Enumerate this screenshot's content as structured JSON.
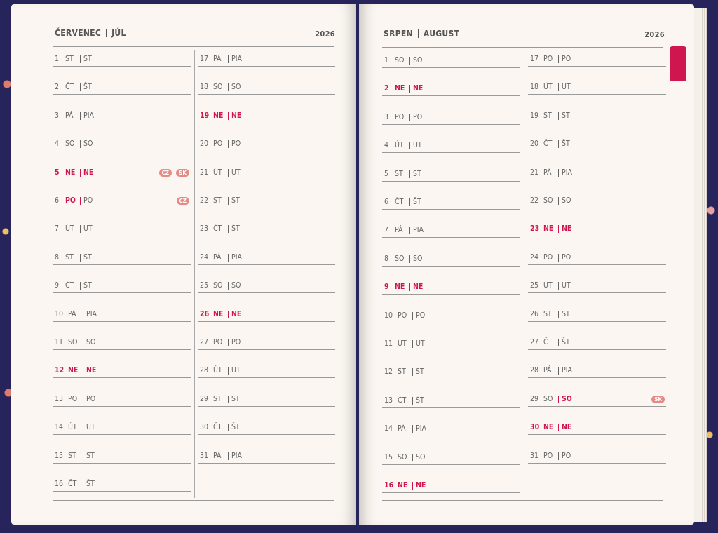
{
  "pages": [
    {
      "month_cz": "ČERVENEC",
      "month_sk": "JÚL",
      "year": "2026",
      "days": [
        {
          "n": "1",
          "cz": "ST",
          "sk": "ST"
        },
        {
          "n": "2",
          "cz": "ČT",
          "sk": "ŠT"
        },
        {
          "n": "3",
          "cz": "PÁ",
          "sk": "PIA"
        },
        {
          "n": "4",
          "cz": "SO",
          "sk": "SO"
        },
        {
          "n": "5",
          "cz": "NE",
          "sk": "NE",
          "cz_red": true,
          "sk_red": true,
          "badges": [
            "CZ",
            "SK"
          ]
        },
        {
          "n": "6",
          "cz": "PO",
          "sk": "PO",
          "cz_red": true,
          "badges": [
            "CZ"
          ]
        },
        {
          "n": "7",
          "cz": "ÚT",
          "sk": "UT"
        },
        {
          "n": "8",
          "cz": "ST",
          "sk": "ST"
        },
        {
          "n": "9",
          "cz": "ČT",
          "sk": "ŠT"
        },
        {
          "n": "10",
          "cz": "PÁ",
          "sk": "PIA"
        },
        {
          "n": "11",
          "cz": "SO",
          "sk": "SO"
        },
        {
          "n": "12",
          "cz": "NE",
          "sk": "NE",
          "cz_red": true,
          "sk_red": true
        },
        {
          "n": "13",
          "cz": "PO",
          "sk": "PO"
        },
        {
          "n": "14",
          "cz": "ÚT",
          "sk": "UT"
        },
        {
          "n": "15",
          "cz": "ST",
          "sk": "ST"
        },
        {
          "n": "16",
          "cz": "ČT",
          "sk": "ŠT"
        },
        {
          "n": "17",
          "cz": "PÁ",
          "sk": "PIA"
        },
        {
          "n": "18",
          "cz": "SO",
          "sk": "SO"
        },
        {
          "n": "19",
          "cz": "NE",
          "sk": "NE",
          "cz_red": true,
          "sk_red": true
        },
        {
          "n": "20",
          "cz": "PO",
          "sk": "PO"
        },
        {
          "n": "21",
          "cz": "ÚT",
          "sk": "UT"
        },
        {
          "n": "22",
          "cz": "ST",
          "sk": "ST"
        },
        {
          "n": "23",
          "cz": "ČT",
          "sk": "ŠT"
        },
        {
          "n": "24",
          "cz": "PÁ",
          "sk": "PIA"
        },
        {
          "n": "25",
          "cz": "SO",
          "sk": "SO"
        },
        {
          "n": "26",
          "cz": "NE",
          "sk": "NE",
          "cz_red": true,
          "sk_red": true
        },
        {
          "n": "27",
          "cz": "PO",
          "sk": "PO"
        },
        {
          "n": "28",
          "cz": "ÚT",
          "sk": "UT"
        },
        {
          "n": "29",
          "cz": "ST",
          "sk": "ST"
        },
        {
          "n": "30",
          "cz": "ČT",
          "sk": "ŠT"
        },
        {
          "n": "31",
          "cz": "PÁ",
          "sk": "PIA"
        }
      ]
    },
    {
      "month_cz": "SRPEN",
      "month_sk": "AUGUST",
      "year": "2026",
      "days": [
        {
          "n": "1",
          "cz": "SO",
          "sk": "SO"
        },
        {
          "n": "2",
          "cz": "NE",
          "sk": "NE",
          "cz_red": true,
          "sk_red": true
        },
        {
          "n": "3",
          "cz": "PO",
          "sk": "PO"
        },
        {
          "n": "4",
          "cz": "ÚT",
          "sk": "UT"
        },
        {
          "n": "5",
          "cz": "ST",
          "sk": "ST"
        },
        {
          "n": "6",
          "cz": "ČT",
          "sk": "ŠT"
        },
        {
          "n": "7",
          "cz": "PÁ",
          "sk": "PIA"
        },
        {
          "n": "8",
          "cz": "SO",
          "sk": "SO"
        },
        {
          "n": "9",
          "cz": "NE",
          "sk": "NE",
          "cz_red": true,
          "sk_red": true
        },
        {
          "n": "10",
          "cz": "PO",
          "sk": "PO"
        },
        {
          "n": "11",
          "cz": "ÚT",
          "sk": "UT"
        },
        {
          "n": "12",
          "cz": "ST",
          "sk": "ST"
        },
        {
          "n": "13",
          "cz": "ČT",
          "sk": "ŠT"
        },
        {
          "n": "14",
          "cz": "PÁ",
          "sk": "PIA"
        },
        {
          "n": "15",
          "cz": "SO",
          "sk": "SO"
        },
        {
          "n": "16",
          "cz": "NE",
          "sk": "NE",
          "cz_red": true,
          "sk_red": true
        },
        {
          "n": "17",
          "cz": "PO",
          "sk": "PO"
        },
        {
          "n": "18",
          "cz": "ÚT",
          "sk": "UT"
        },
        {
          "n": "19",
          "cz": "ST",
          "sk": "ST"
        },
        {
          "n": "20",
          "cz": "ČT",
          "sk": "ŠT"
        },
        {
          "n": "21",
          "cz": "PÁ",
          "sk": "PIA"
        },
        {
          "n": "22",
          "cz": "SO",
          "sk": "SO"
        },
        {
          "n": "23",
          "cz": "NE",
          "sk": "NE",
          "cz_red": true,
          "sk_red": true
        },
        {
          "n": "24",
          "cz": "PO",
          "sk": "PO"
        },
        {
          "n": "25",
          "cz": "ÚT",
          "sk": "UT"
        },
        {
          "n": "26",
          "cz": "ST",
          "sk": "ST"
        },
        {
          "n": "27",
          "cz": "ČT",
          "sk": "ŠT"
        },
        {
          "n": "28",
          "cz": "PÁ",
          "sk": "PIA"
        },
        {
          "n": "29",
          "cz": "SO",
          "sk": "SO",
          "sk_red": true,
          "badges": [
            "SK"
          ]
        },
        {
          "n": "30",
          "cz": "NE",
          "sk": "NE",
          "cz_red": true,
          "sk_red": true
        },
        {
          "n": "31",
          "cz": "PO",
          "sk": "PO"
        }
      ]
    }
  ]
}
